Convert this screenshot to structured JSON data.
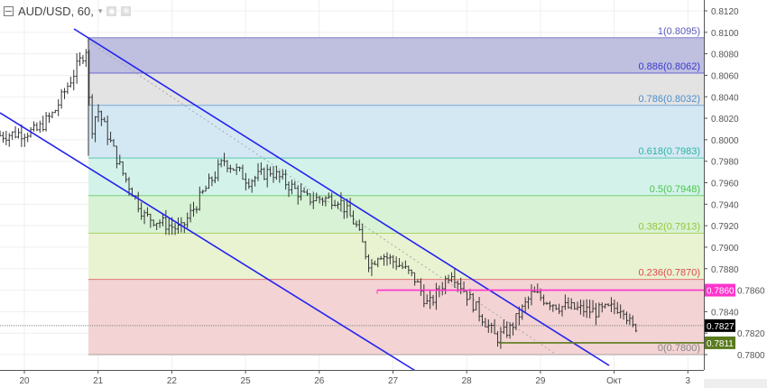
{
  "header": {
    "symbol_title": "AUD/USD, 60,",
    "caret": "▾",
    "icons": [
      "eye-icon",
      "gear-icon"
    ]
  },
  "chart_data": {
    "type": "ohlc",
    "symbol": "AUD/USD",
    "interval": "60",
    "ylim": [
      0.7792,
      0.8128
    ],
    "y_ticks": [
      "0.8120",
      "0.8100",
      "0.8080",
      "0.8060",
      "0.8040",
      "0.8020",
      "0.8000",
      "0.7980",
      "0.7960",
      "0.7940",
      "0.7920",
      "0.7900",
      "0.7880",
      "0.7860",
      "0.7840",
      "0.7820",
      "0.7800"
    ],
    "x_ticks": [
      "20",
      "21",
      "22",
      "25",
      "26",
      "27",
      "28",
      "29",
      "Окт",
      "3"
    ],
    "grid": true,
    "price_path": [
      [
        -0.33,
        0.8004
      ],
      [
        0.16,
        0.8008
      ],
      [
        0.4,
        0.8025
      ],
      [
        0.65,
        0.8059
      ],
      [
        0.86,
        0.8088
      ],
      [
        0.89,
        0.8004
      ],
      [
        0.99,
        0.8029
      ],
      [
        1.32,
        0.7971
      ],
      [
        1.63,
        0.7929
      ],
      [
        2.12,
        0.7916
      ],
      [
        2.42,
        0.795
      ],
      [
        2.71,
        0.7981
      ],
      [
        3.04,
        0.7962
      ],
      [
        3.34,
        0.7971
      ],
      [
        3.83,
        0.7945
      ],
      [
        4.26,
        0.7945
      ],
      [
        4.5,
        0.792
      ],
      [
        4.69,
        0.7882
      ],
      [
        4.81,
        0.7895
      ],
      [
        5.12,
        0.7882
      ],
      [
        5.3,
        0.787
      ],
      [
        5.48,
        0.7845
      ],
      [
        5.79,
        0.7878
      ],
      [
        6.03,
        0.7853
      ],
      [
        6.28,
        0.7828
      ],
      [
        6.4,
        0.7815
      ],
      [
        6.59,
        0.7824
      ],
      [
        6.89,
        0.7857
      ],
      [
        7.26,
        0.7845
      ],
      [
        7.75,
        0.784
      ],
      [
        8.12,
        0.7845
      ],
      [
        8.24,
        0.7824
      ],
      [
        8.3,
        0.7827
      ]
    ],
    "fibonacci": {
      "levels": [
        {
          "ratio": "1",
          "price": "0.8095",
          "value": 0.8095,
          "color": "#5b5bbf",
          "fill": "#bfbfe0"
        },
        {
          "ratio": "0.886",
          "price": "0.8062",
          "value": 0.8062,
          "color": "#3a3acc",
          "fill": "#e3e3e3"
        },
        {
          "ratio": "0.786",
          "price": "0.8032",
          "value": 0.8032,
          "color": "#4a8fcf",
          "fill": "#d4e8f4"
        },
        {
          "ratio": "0.618",
          "price": "0.7983",
          "value": 0.7983,
          "color": "#2bb5a0",
          "fill": "#d3f3ea"
        },
        {
          "ratio": "0.5",
          "price": "0.7948",
          "value": 0.7948,
          "color": "#4cc24c",
          "fill": "#d7f2d4"
        },
        {
          "ratio": "0.382",
          "price": "0.7913",
          "value": 0.7913,
          "color": "#9ac43a",
          "fill": "#e9f3d2"
        },
        {
          "ratio": "0.236",
          "price": "0.7870",
          "value": 0.787,
          "color": "#e04848",
          "fill": "#f3d3d3"
        },
        {
          "ratio": "0",
          "price": "0.7800",
          "value": 0.78,
          "color": "#888888",
          "fill": null
        }
      ]
    },
    "horizontal_lines": [
      {
        "label": "0.7860",
        "value": 0.786,
        "color": "#ff33cc"
      },
      {
        "label": "0.7811",
        "value": 0.7811,
        "color": "#5a7a1e"
      }
    ],
    "last_price": {
      "label": "0.7827",
      "value": 0.7827,
      "color": "#000000"
    },
    "channel_color": "#2222ee"
  }
}
